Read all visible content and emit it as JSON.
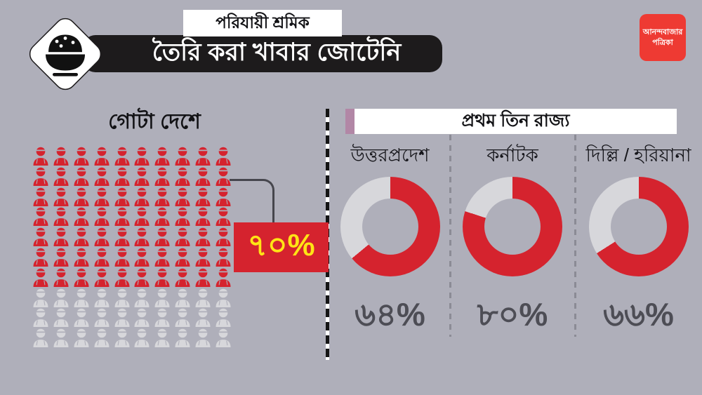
{
  "colors": {
    "background": "#afafba",
    "red": "#d5232e",
    "light_gray": "#d7d7db",
    "yellow": "#ffe415",
    "banner_black": "#1d1b1c",
    "logo_red": "#ee3a33",
    "purple_accent": "#b287a6",
    "value_text": "#4d4d55"
  },
  "header": {
    "badge": "পরিযায়ী শ্রমিক",
    "title": "তৈরি করা খাবার জোটেনি",
    "logo": {
      "line1": "আনন্দবাজার",
      "line2": "পত্রিকা"
    }
  },
  "left": {
    "title": "গোটা দেশে",
    "pictogram": {
      "total": 100,
      "highlighted": 70,
      "per_row": 10
    },
    "callout_label": "৭০%",
    "callout_value": 70
  },
  "right": {
    "title": "প্রথম তিন রাজ্য",
    "states": [
      {
        "name": "উত্তরপ্রদেশ",
        "label": "৬৪%",
        "value": 64
      },
      {
        "name": "কর্নাটক",
        "label": "৮০%",
        "value": 80
      },
      {
        "name": "দিল্লি / হরিয়ানা",
        "label": "৬৬%",
        "value": 66
      }
    ]
  },
  "chart_data": [
    {
      "type": "pictogram",
      "title": "গোটা দেশে",
      "unit": "percent of migrant workers",
      "total_icons": 100,
      "highlighted_icons": 70,
      "value": 70,
      "value_label": "৭০%",
      "icons_per_row": 10,
      "highlight_color": "#d5232e",
      "rest_color": "#d7d7db"
    },
    {
      "type": "pie",
      "subtype": "donut",
      "title": "প্রথম তিন রাজ্য",
      "categories": [
        "উত্তরপ্রদেশ",
        "কর্নাটক",
        "দিল্লি / হরিয়ানা"
      ],
      "values": [
        64,
        80,
        66
      ],
      "labels": [
        "৬৪%",
        "৮০%",
        "৬৬%"
      ],
      "series_color": "#d5232e",
      "remainder_color": "#d7d7db",
      "start_angle_deg": 0,
      "direction": "clockwise"
    }
  ]
}
